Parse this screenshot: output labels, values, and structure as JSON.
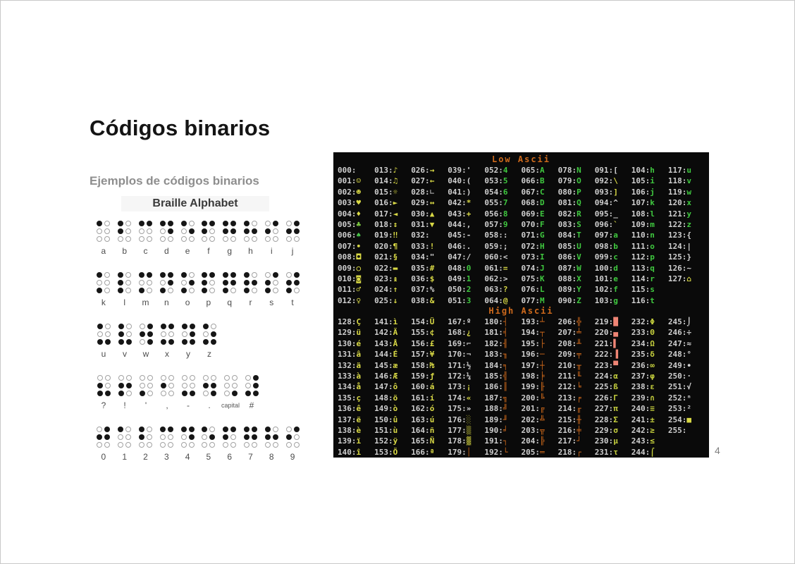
{
  "slide": {
    "title": "Códigos binarios",
    "subtitle": "Ejemplos de códigos binarios",
    "page_number": "4"
  },
  "braille": {
    "title": "Braille Alphabet",
    "rows": [
      [
        {
          "label": "a",
          "dots": [
            1
          ]
        },
        {
          "label": "b",
          "dots": [
            1,
            2
          ]
        },
        {
          "label": "c",
          "dots": [
            1,
            4
          ]
        },
        {
          "label": "d",
          "dots": [
            1,
            4,
            5
          ]
        },
        {
          "label": "e",
          "dots": [
            1,
            5
          ]
        },
        {
          "label": "f",
          "dots": [
            1,
            2,
            4
          ]
        },
        {
          "label": "g",
          "dots": [
            1,
            2,
            4,
            5
          ]
        },
        {
          "label": "h",
          "dots": [
            1,
            2,
            5
          ]
        },
        {
          "label": "i",
          "dots": [
            2,
            4
          ]
        },
        {
          "label": "j",
          "dots": [
            2,
            4,
            5
          ]
        }
      ],
      [
        {
          "label": "k",
          "dots": [
            1,
            3
          ]
        },
        {
          "label": "l",
          "dots": [
            1,
            2,
            3
          ]
        },
        {
          "label": "m",
          "dots": [
            1,
            3,
            4
          ]
        },
        {
          "label": "n",
          "dots": [
            1,
            3,
            4,
            5
          ]
        },
        {
          "label": "o",
          "dots": [
            1,
            3,
            5
          ]
        },
        {
          "label": "p",
          "dots": [
            1,
            2,
            3,
            4
          ]
        },
        {
          "label": "q",
          "dots": [
            1,
            2,
            3,
            4,
            5
          ]
        },
        {
          "label": "r",
          "dots": [
            1,
            2,
            3,
            5
          ]
        },
        {
          "label": "s",
          "dots": [
            2,
            3,
            4
          ]
        },
        {
          "label": "t",
          "dots": [
            2,
            3,
            4,
            5
          ]
        }
      ],
      [
        {
          "label": "u",
          "dots": [
            1,
            3,
            6
          ]
        },
        {
          "label": "v",
          "dots": [
            1,
            2,
            3,
            6
          ]
        },
        {
          "label": "w",
          "dots": [
            2,
            4,
            5,
            6
          ]
        },
        {
          "label": "x",
          "dots": [
            1,
            3,
            4,
            6
          ]
        },
        {
          "label": "y",
          "dots": [
            1,
            3,
            4,
            5,
            6
          ]
        },
        {
          "label": "z",
          "dots": [
            1,
            3,
            5,
            6
          ]
        }
      ],
      [
        {
          "label": "?",
          "dots": [
            2,
            3,
            6
          ]
        },
        {
          "label": "!",
          "dots": [
            2,
            3,
            5
          ]
        },
        {
          "label": "'",
          "dots": [
            3
          ]
        },
        {
          "label": ",",
          "dots": [
            2
          ]
        },
        {
          "label": "-",
          "dots": [
            3,
            6
          ]
        },
        {
          "label": ".",
          "dots": [
            2,
            5,
            6
          ]
        },
        {
          "label": "capital",
          "dots": [
            6
          ],
          "small": true
        },
        {
          "label": "#",
          "dots": [
            3,
            4,
            5,
            6
          ]
        }
      ],
      [
        {
          "label": "0",
          "dots": [
            2,
            4,
            5
          ]
        },
        {
          "label": "1",
          "dots": [
            1
          ]
        },
        {
          "label": "2",
          "dots": [
            1,
            2
          ]
        },
        {
          "label": "3",
          "dots": [
            1,
            4
          ]
        },
        {
          "label": "4",
          "dots": [
            1,
            4,
            5
          ]
        },
        {
          "label": "5",
          "dots": [
            1,
            5
          ]
        },
        {
          "label": "6",
          "dots": [
            1,
            2,
            4
          ]
        },
        {
          "label": "7",
          "dots": [
            1,
            2,
            4,
            5
          ]
        },
        {
          "label": "8",
          "dots": [
            1,
            2,
            5
          ]
        },
        {
          "label": "9",
          "dots": [
            2,
            4
          ]
        }
      ]
    ]
  },
  "ascii_table": {
    "sections": [
      {
        "header": "Low Ascii",
        "start": 0,
        "end": 127
      },
      {
        "header": "High Ascii",
        "start": 128,
        "end": 255
      }
    ],
    "columns": 10,
    "rows_per_column": 13,
    "header_color": "#cf6a1c",
    "number_color": "#cfcfcf",
    "default_color": "#d2d2d2",
    "charset": [
      " ☺☻♥♦♣♠•◘○◙♂♀♪♫☼",
      "►◄↕‼¶§▬↨↑↓→←∟↔▲▼",
      " !\"#$%&'()*+,-./",
      "0123456789:;<=>?",
      "@ABCDEFGHIJKLMNO",
      "PQRSTUVWXYZ[\\]^_",
      "`abcdefghijklmno",
      "pqrstuvwxyz{|}~⌂",
      "ÇüéâäàåçêëèïîìÄÅ",
      "ÉæÆôöòûùÿÖÜ¢£¥₧ƒ",
      "áíóúñÑªº¿⌐¬½¼¡«»",
      "░▒▓│┤╡╢╖╕╣║╗╝╜╛┐",
      "└┴┬├─┼╞╟╚╔╩╦╠═╬╧",
      "╨╤╥╙╘╒╓╫╪┘┌█▄▌▐▀",
      "αßΓπΣσµτΦΘΩδ∞φε∩",
      "≡±≥≤⌠⌡÷≈°∙·√ⁿ²■ "
    ],
    "color_rules": [
      {
        "from": 1,
        "to": 31,
        "color": "#d9d945"
      },
      {
        "from": 48,
        "to": 57,
        "color": "#3fc83f"
      },
      {
        "from": 65,
        "to": 90,
        "color": "#3fc83f"
      },
      {
        "from": 97,
        "to": 122,
        "color": "#3fc83f"
      },
      {
        "from": 128,
        "to": 175,
        "color": "#d9d945"
      },
      {
        "from": 176,
        "to": 178,
        "color": "#97972f"
      },
      {
        "from": 179,
        "to": 218,
        "color": "#c9661a"
      },
      {
        "from": 219,
        "to": 223,
        "color": "#ef8575"
      },
      {
        "from": 224,
        "to": 244,
        "color": "#c5cf3d"
      }
    ],
    "color_exceptions": {
      "5": "#7cc840",
      "6": "#49c34a",
      "28": "#9a9a9a",
      "33": "#d9d945",
      "35": "#d9d945",
      "36": "#d9d945",
      "38": "#d9d945",
      "42": "#d9d945",
      "43": "#d9d945",
      "61": "#d9d945",
      "63": "#d9d945",
      "64": "#d9d945",
      "92": "#d9d945",
      "93": "#d9d945",
      "96": "#d9d945",
      "127": "#d9d945",
      "167": "#dcdcdc",
      "169": "#b5b5b5",
      "170": "#b5b5b5",
      "171": "#dcdcdc",
      "172": "#dcdcdc",
      "175": "#dcdcdc",
      "254": "#d9d945"
    }
  }
}
